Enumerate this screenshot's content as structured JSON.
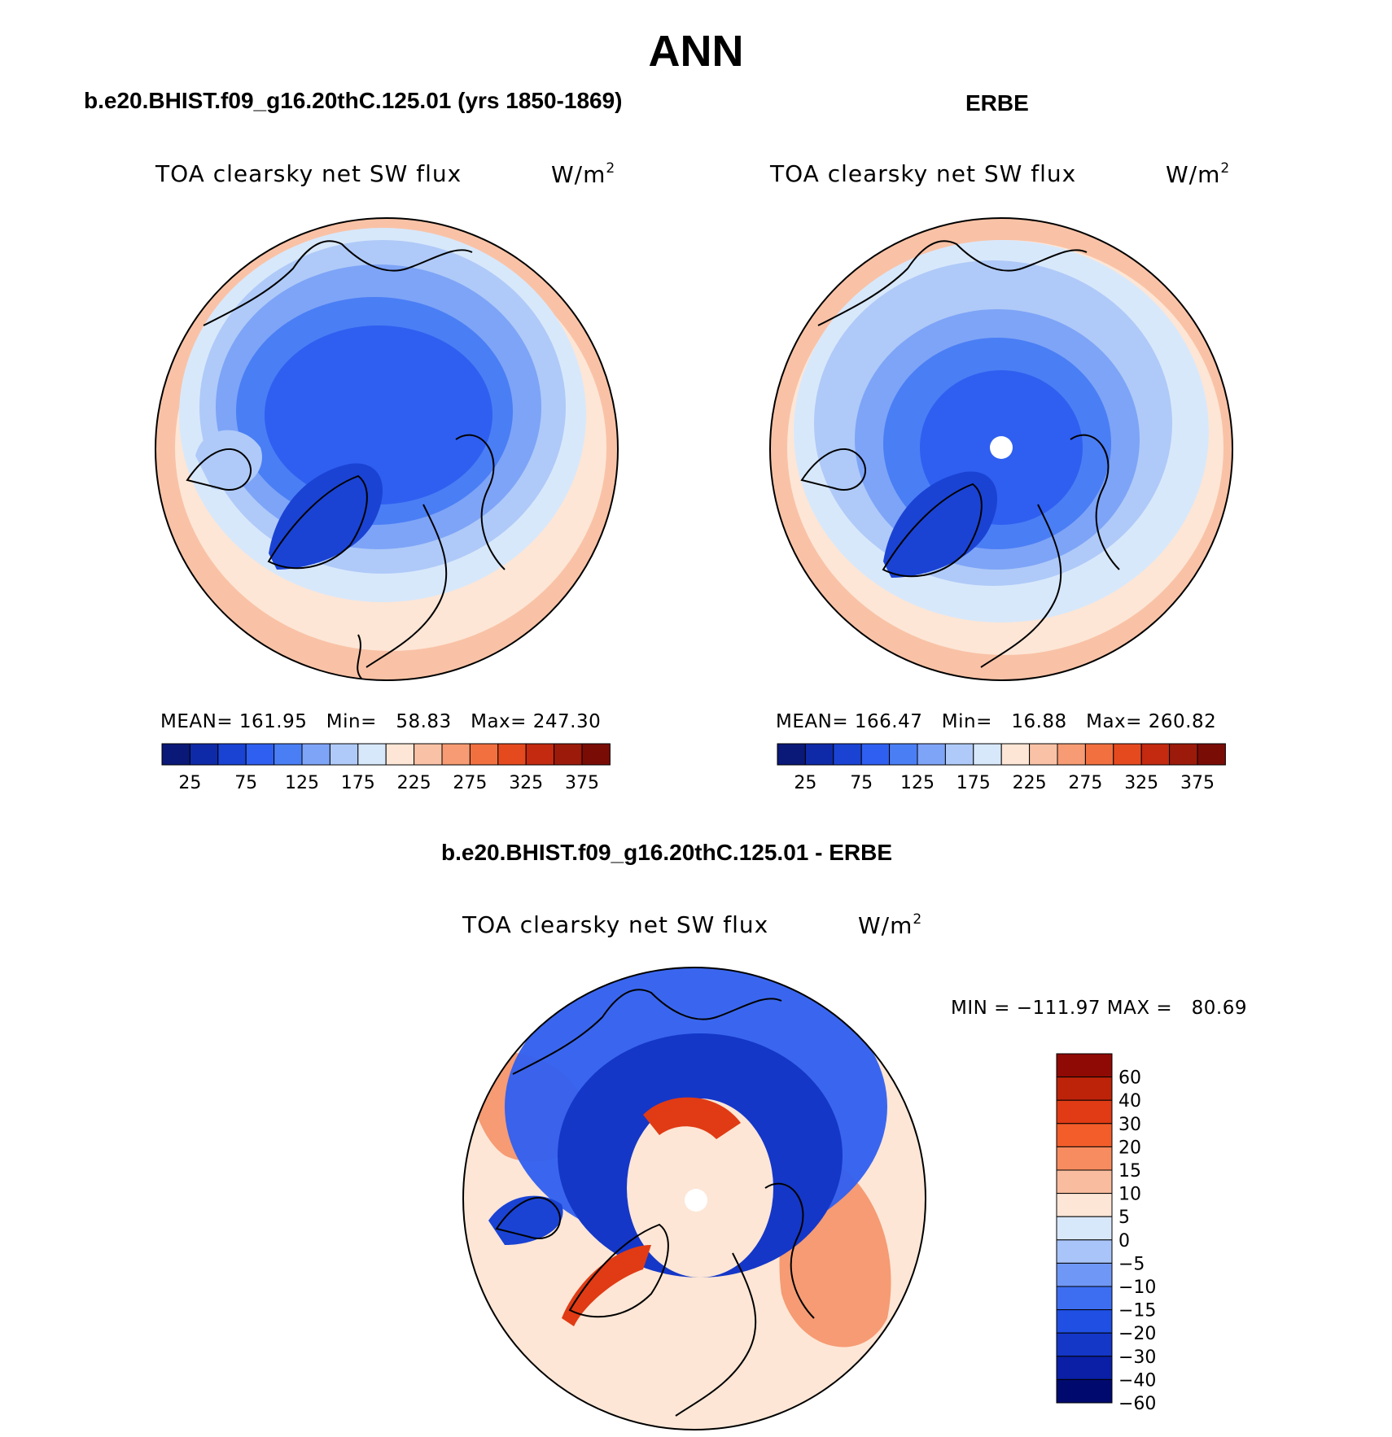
{
  "title": "ANN",
  "panels": [
    {
      "case_title": "b.e20.BHIST.f09_g16.20thC.125.01 (yrs 1850-1869)",
      "variable": "TOA clearsky net SW flux",
      "units": "W/m",
      "units_sup": "2",
      "stats": "MEAN= 161.95   Min=   58.83   Max= 247.30"
    },
    {
      "case_title": "ERBE",
      "variable": "TOA clearsky net SW flux",
      "units": "W/m",
      "units_sup": "2",
      "stats": "MEAN= 166.47   Min=   16.88   Max= 260.82"
    },
    {
      "case_title": "b.e20.BHIST.f09_g16.20thC.125.01 - ERBE",
      "variable": "TOA clearsky net SW flux",
      "units": "W/m",
      "units_sup": "2",
      "stats": "MIN = −111.97 MAX =   80.69"
    }
  ],
  "colorbar_abs": {
    "colors": [
      "#0a1878",
      "#0f2aa8",
      "#1a43d4",
      "#2f5ff0",
      "#4a7ef5",
      "#7ea4f7",
      "#afcaf8",
      "#d8e8fb",
      "#fde6d6",
      "#f9c2a6",
      "#f69b73",
      "#f27040",
      "#e54a1f",
      "#c32a10",
      "#9c1a0a",
      "#7a0c06"
    ],
    "labels": [
      "25",
      "75",
      "125",
      "175",
      "225",
      "275",
      "325",
      "375"
    ]
  },
  "colorbar_diff": {
    "colors": [
      "#000a6e",
      "#0a1fa5",
      "#1437c8",
      "#1f4fe3",
      "#3d6ef2",
      "#6f97f5",
      "#a9c4f8",
      "#d8e8fb",
      "#fde6d6",
      "#f9bc9e",
      "#f68c5f",
      "#f25d2a",
      "#e03b14",
      "#bd2309",
      "#8f0a04"
    ],
    "labels": [
      "60",
      "40",
      "30",
      "20",
      "15",
      "10",
      "5",
      "0",
      "−5",
      "−10",
      "−15",
      "−20",
      "−30",
      "−40",
      "−60"
    ]
  }
}
